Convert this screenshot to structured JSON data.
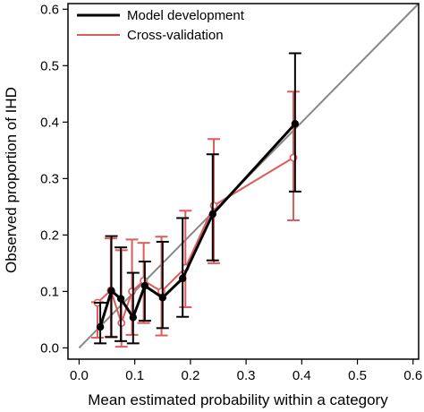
{
  "chart_data": {
    "type": "scatter",
    "title": "",
    "xlabel": "Mean estimated probability within a category",
    "ylabel": "Observed proportion of IHD",
    "xlim": [
      -0.02,
      0.61
    ],
    "ylim": [
      -0.02,
      0.61
    ],
    "xticks": [
      "0.0",
      "0.1",
      "0.2",
      "0.3",
      "0.4",
      "0.5",
      "0.6"
    ],
    "yticks": [
      "0.0",
      "0.1",
      "0.2",
      "0.3",
      "0.4",
      "0.5",
      "0.6"
    ],
    "grid": false,
    "legend_position": "top-left",
    "reference_line": {
      "from": [
        0,
        0
      ],
      "to": [
        0.61,
        0.61
      ],
      "color": "#888888"
    },
    "series": [
      {
        "name": "Model development",
        "color": "#000000",
        "marker": "filled-circle",
        "x": [
          0.038,
          0.058,
          0.075,
          0.097,
          0.118,
          0.15,
          0.186,
          0.24,
          0.388
        ],
        "y": [
          0.037,
          0.101,
          0.087,
          0.054,
          0.11,
          0.089,
          0.123,
          0.237,
          0.397
        ],
        "lo": [
          0.008,
          0.019,
          0.012,
          0.008,
          0.048,
          0.035,
          0.055,
          0.155,
          0.277
        ],
        "hi": [
          0.08,
          0.198,
          0.178,
          0.133,
          0.153,
          0.188,
          0.23,
          0.343,
          0.522
        ]
      },
      {
        "name": "Cross-validation",
        "color": "#e05a5a",
        "marker": "open-circle",
        "x": [
          0.033,
          0.057,
          0.076,
          0.095,
          0.116,
          0.148,
          0.191,
          0.242,
          0.385
        ],
        "y": [
          0.08,
          0.102,
          0.044,
          0.1,
          0.119,
          0.1,
          0.142,
          0.252,
          0.337
        ],
        "lo": [
          0.018,
          0.02,
          0.002,
          0.023,
          0.044,
          0.022,
          0.072,
          0.15,
          0.226
        ],
        "hi": [
          0.081,
          0.194,
          0.173,
          0.192,
          0.186,
          0.197,
          0.243,
          0.37,
          0.454
        ]
      }
    ]
  }
}
